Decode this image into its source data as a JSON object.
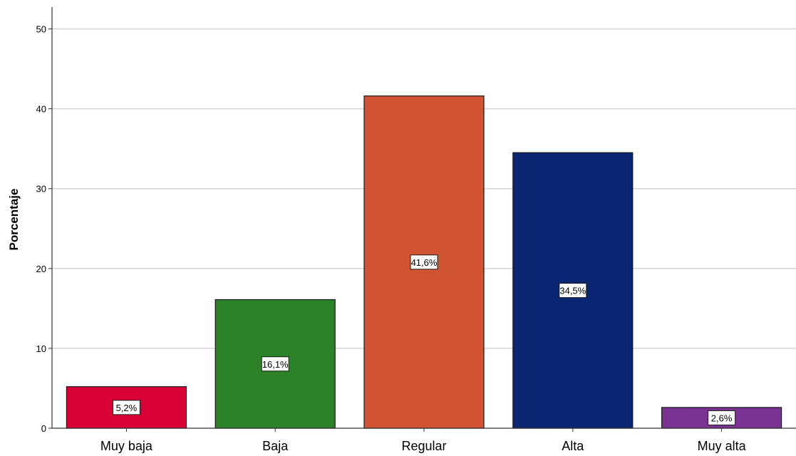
{
  "chart_data": {
    "type": "bar",
    "categories": [
      "Muy baja",
      "Baja",
      "Regular",
      "Alta",
      "Muy alta"
    ],
    "values": [
      5.2,
      16.1,
      41.6,
      34.5,
      2.6
    ],
    "data_labels": [
      "5,2%",
      "16,1%",
      "41,6%",
      "34,5%",
      "2,6%"
    ],
    "colors": [
      "#d90035",
      "#2b8228",
      "#d05332",
      "#0a2572",
      "#7b3393"
    ],
    "ylabel": "Porcentaje",
    "xlabel": "",
    "ylim": [
      0,
      50
    ],
    "yticks": [
      0,
      10,
      20,
      30,
      40,
      50
    ],
    "grid": true
  }
}
